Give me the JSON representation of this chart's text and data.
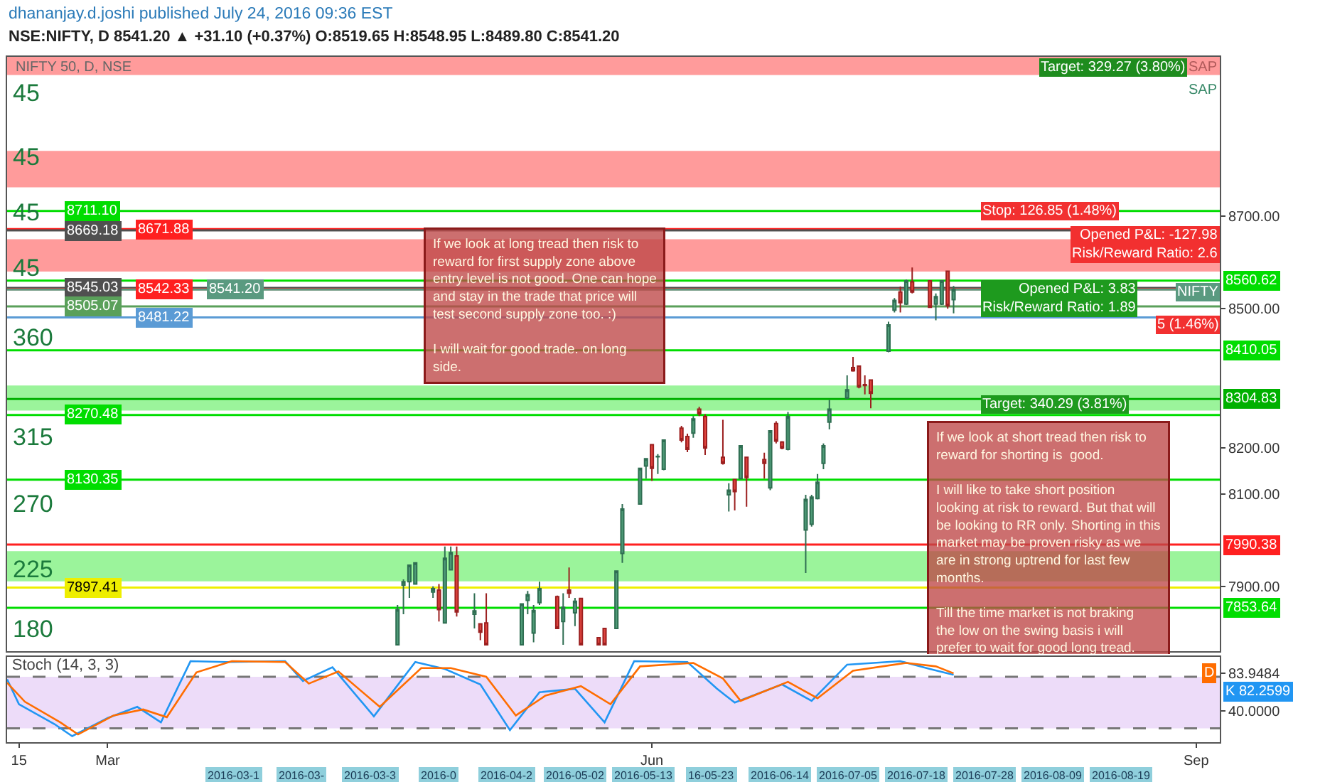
{
  "chart_data": [
    {
      "type": "candlestick",
      "title": "dhananjay.d.joshi published July 24, 2016 09:36 EST",
      "subtitle": "NSE:NIFTY, D 8541.20 ▲ +31.10 (+0.37%) O:8519.65 H:8548.95 L:8489.80 C:8541.20",
      "x": [
        "2016-04-19",
        "2016-04-20",
        "2016-04-21",
        "2016-04-22",
        "2016-04-25",
        "2016-04-26",
        "2016-04-27",
        "2016-04-28",
        "2016-04-29",
        "2016-05-02",
        "2016-05-03",
        "2016-05-04",
        "2016-05-10",
        "2016-05-11",
        "2016-05-12",
        "2016-05-13",
        "2016-05-16",
        "2016-05-17",
        "2016-05-18",
        "2016-05-19",
        "2016-05-20",
        "2016-05-23",
        "2016-05-24",
        "2016-05-26",
        "2016-05-27",
        "2016-05-30",
        "2016-05-31",
        "2016-06-01",
        "2016-06-02",
        "2016-06-03",
        "2016-06-06",
        "2016-06-07",
        "2016-06-08",
        "2016-06-09",
        "2016-06-10",
        "2016-06-13",
        "2016-06-14",
        "2016-06-15",
        "2016-06-16",
        "2016-06-17",
        "2016-06-20",
        "2016-06-21",
        "2016-06-22",
        "2016-06-23",
        "2016-06-24",
        "2016-06-27",
        "2016-06-28",
        "2016-06-29",
        "2016-06-30",
        "2016-07-01",
        "2016-07-04",
        "2016-07-05",
        "2016-07-06",
        "2016-07-07",
        "2016-07-08",
        "2016-07-11",
        "2016-07-12",
        "2016-07-13",
        "2016-07-14",
        "2016-07-15",
        "2016-07-18",
        "2016-07-19",
        "2016-07-20",
        "2016-07-21",
        "2016-07-22"
      ],
      "ohlc": [
        [
          7774,
          7860,
          7774,
          7850
        ],
        [
          7903,
          7915,
          7840,
          7910
        ],
        [
          7910,
          7946,
          7875,
          7946
        ],
        [
          7905,
          7951,
          7905,
          7951
        ],
        [
          7888,
          7900,
          7875,
          7895
        ],
        [
          7892,
          7905,
          7824,
          7850
        ],
        [
          7821,
          7986,
          7821,
          7961
        ],
        [
          7936,
          7986,
          7936,
          7973
        ],
        [
          7966,
          7986,
          7835,
          7845
        ],
        [
          7840,
          7885,
          7809,
          7847
        ],
        [
          7819,
          7819,
          7784,
          7801
        ],
        [
          7821,
          7885,
          7774,
          7774
        ],
        [
          7774,
          7862,
          7774,
          7862
        ],
        [
          7870,
          7890,
          7840,
          7882
        ],
        [
          7799,
          7860,
          7779,
          7848
        ],
        [
          7865,
          7910,
          7860,
          7895
        ],
        [
          7878,
          7880,
          7809,
          7809
        ],
        [
          7824,
          7885,
          7774,
          7855
        ],
        [
          7892,
          7941,
          7875,
          7885
        ],
        [
          7843,
          7875,
          7814,
          7868
        ],
        [
          7874,
          7874,
          7774,
          7774
        ],
        [
          7789,
          7789,
          7774,
          7774
        ],
        [
          7809,
          7809,
          7774,
          7774
        ],
        [
          7809,
          7933,
          7809,
          7933
        ],
        [
          7971,
          8078,
          7951,
          8067
        ],
        [
          8078,
          8155,
          8078,
          8155
        ],
        [
          8160,
          8176,
          8133,
          8176
        ],
        [
          8206,
          8206,
          8128,
          8155
        ],
        [
          8180,
          8186,
          8143,
          8181
        ],
        [
          8153,
          8216,
          8151,
          8216
        ],
        [
          8242,
          8247,
          8211,
          8216
        ],
        [
          8224,
          8230,
          8190,
          8196
        ],
        [
          8231,
          8268,
          8221,
          8262
        ],
        [
          8283,
          8288,
          8268,
          8273
        ],
        [
          8267,
          8272,
          8184,
          8199
        ],
        [
          8179,
          8260,
          8163,
          8166
        ],
        [
          8098,
          8123,
          8062,
          8108
        ],
        [
          8131,
          8131,
          8064,
          8105
        ],
        [
          8133,
          8204,
          8133,
          8204
        ],
        [
          8179,
          8179,
          8072,
          8135
        ],
        [
          8174,
          8189,
          8133,
          8166
        ],
        [
          8113,
          8236,
          8108,
          8236
        ],
        [
          8252,
          8257,
          8209,
          8214
        ],
        [
          8212,
          8214,
          8196,
          8199
        ],
        [
          8196,
          8277,
          8194,
          8267
        ],
        [
          8022,
          8098,
          7929,
          8088
        ],
        [
          8034,
          8098,
          8029,
          8093
        ],
        [
          8090,
          8143,
          8088,
          8125
        ],
        [
          8166,
          8209,
          8153,
          8204
        ],
        [
          8255,
          8303,
          8239,
          8283
        ],
        [
          8307,
          8356,
          8305,
          8325
        ],
        [
          8373,
          8396,
          8364,
          8366
        ],
        [
          8376,
          8376,
          8328,
          8331
        ],
        [
          8336,
          8356,
          8315,
          8334
        ],
        [
          8346,
          8346,
          8285,
          8317
        ],
        [
          8408,
          8472,
          8406,
          8465
        ],
        [
          8497,
          8523,
          8492,
          8518
        ],
        [
          8536,
          8548,
          8492,
          8513
        ],
        [
          8510,
          8563,
          8508,
          8560
        ],
        [
          8558,
          8589,
          8533,
          8536
        ],
        [
          8560,
          8560,
          8503,
          8503
        ],
        [
          8510,
          8533,
          8475,
          8526
        ],
        [
          8510,
          8560,
          8508,
          8560
        ],
        [
          8581,
          8581,
          8500,
          8506
        ],
        [
          8519.65,
          8548.95,
          8489.8,
          8541.2
        ]
      ],
      "xlim": [
        "2016-02-13",
        "2016-09-05"
      ],
      "ylim": [
        7760,
        9044
      ],
      "yticks": [
        {
          "value": 8700,
          "label": "8700.00"
        },
        {
          "value": 8500,
          "label": "8500.00"
        },
        {
          "value": 8200,
          "label": "8200.00"
        },
        {
          "value": 8100,
          "label": "8100.00"
        },
        {
          "value": 7900,
          "label": "7900.00"
        }
      ],
      "tick_labels": "y",
      "bands": [
        {
          "axis": "y",
          "from": 9005,
          "to": 9044,
          "color": "#ff7070"
        },
        {
          "axis": "y",
          "from": 8762,
          "to": 8841,
          "color": "#ff7070"
        },
        {
          "axis": "y",
          "from": 8580,
          "to": 8650,
          "color": "#ff7070"
        },
        {
          "axis": "y",
          "from": 8280,
          "to": 8334,
          "color": "#70f070"
        },
        {
          "axis": "y",
          "from": 7911,
          "to": 7976,
          "color": "#70f070"
        }
      ],
      "ref_lines": [
        {
          "axis": "y",
          "value": 8711.1,
          "label": "8711.10",
          "color": "#00dd00"
        },
        {
          "axis": "y",
          "value": 8671.88,
          "label": "8671.88",
          "color": "#ff2020"
        },
        {
          "axis": "y",
          "value": 8669.18,
          "label": "8669.18",
          "color": "#505050"
        },
        {
          "axis": "y",
          "value": 8560.62,
          "label": "8560.62",
          "color": "#00dd00"
        },
        {
          "axis": "y",
          "value": 8545.03,
          "label": "8545.03",
          "color": "#505050"
        },
        {
          "axis": "y",
          "value": 8542.33,
          "label": "8542.33",
          "color": "#ff2020"
        },
        {
          "axis": "y",
          "value": 8541.2,
          "label": "8541.20",
          "color": "#5a9a80"
        },
        {
          "axis": "y",
          "value": 8505.07,
          "label": "8505.07",
          "color": "#5aa05a"
        },
        {
          "axis": "y",
          "value": 8481.22,
          "label": "8481.22",
          "color": "#5b9bd5"
        },
        {
          "axis": "y",
          "value": 8410.05,
          "label": "8410.05",
          "color": "#00dd00"
        },
        {
          "axis": "y",
          "value": 8304.83,
          "label": "8304.83",
          "color": "#00b000"
        },
        {
          "axis": "y",
          "value": 8270.48,
          "label": "8270.48",
          "color": "#00dd00"
        },
        {
          "axis": "y",
          "value": 8130.35,
          "label": "8130.35",
          "color": "#00dd00"
        },
        {
          "axis": "y",
          "value": 7990.38,
          "label": "7990.38",
          "color": "#ff2020"
        },
        {
          "axis": "y",
          "value": 7897.41,
          "label": "7897.41",
          "color": "#eeee00"
        },
        {
          "axis": "y",
          "value": 7853.64,
          "label": "7853.64",
          "color": "#00dd00"
        }
      ],
      "annotations": [
        "NIFTY 50, D, NSE",
        "45",
        "45",
        "45",
        "45",
        "360",
        "315",
        "270",
        "225",
        "180",
        "If we look at long tread then risk to\nreward for first supply zone above\nentry level is not good. One can hope\nand stay in the trade that price will\ntest second supply zone too. :)\n\nI will wait for good trade. on long\nside.",
        "If we look at short tread then risk to\nreward for shorting is  good.\n\nI will like to take short position\nlooking at risk to reward. But that will\nbe looking to RR only. Shorting in this\nmarket may be proven risky as we\nare in strong uptrend for last few\nmonths.\n\nTill the time market is not braking\nthe low on the swing basis i will\nprefer to wait for good long tread.",
        "Stop: 126.85 (1.48%)",
        "Opened P&L: -127.98\nRisk/Reward Ratio: 2.6",
        "Target: 329.27 (3.80%)",
        "Opened P&L: 3.83\nRisk/Reward Ratio: 1.89",
        "5 (1.46%)",
        "Target: 340.29 (3.81%)",
        "SAP",
        "SAP",
        "NIFTY"
      ]
    },
    {
      "type": "line",
      "title": "Stoch (14, 3, 3)",
      "series": [
        {
          "name": "K",
          "color": "#2196f3",
          "x": [
            "2016-02-13",
            "2016-02-15",
            "2016-02-21",
            "2016-02-24",
            "2016-03-01",
            "2016-03-06",
            "2016-03-10",
            "2016-03-15",
            "2016-03-21",
            "2016-03-31",
            "2016-04-03",
            "2016-04-08",
            "2016-04-15",
            "2016-04-22",
            "2016-04-27",
            "2016-05-03",
            "2016-05-08",
            "2016-05-13",
            "2016-05-19",
            "2016-05-24",
            "2016-05-29",
            "2016-06-07",
            "2016-06-12",
            "2016-06-15",
            "2016-06-23",
            "2016-06-28",
            "2016-07-04",
            "2016-07-13",
            "2016-07-18",
            "2016-07-22"
          ],
          "values": [
            77,
            48,
            25,
            11,
            32,
            45,
            27,
            98,
            97,
            98,
            75,
            91,
            34,
            97,
            89,
            71,
            18,
            62,
            66,
            27,
            98,
            97,
            66,
            50,
            71,
            52,
            94,
            98,
            89,
            82.2599
          ],
          "value_labels": [
            null,
            null,
            null,
            null,
            null,
            null,
            null,
            null,
            null,
            null,
            null,
            null,
            null,
            null,
            null,
            null,
            null,
            null,
            null,
            null,
            null,
            null,
            null,
            null,
            null,
            null,
            null,
            null,
            null,
            "82.2599"
          ]
        },
        {
          "name": "D",
          "color": "#ff6d00",
          "x": [
            "2016-02-13",
            "2016-02-16",
            "2016-02-22",
            "2016-02-25",
            "2016-03-02",
            "2016-03-07",
            "2016-03-11",
            "2016-03-16",
            "2016-03-22",
            "2016-03-31",
            "2016-04-04",
            "2016-04-09",
            "2016-04-16",
            "2016-04-23",
            "2016-04-28",
            "2016-05-04",
            "2016-05-09",
            "2016-05-14",
            "2016-05-20",
            "2016-05-25",
            "2016-05-30",
            "2016-06-08",
            "2016-06-13",
            "2016-06-16",
            "2016-06-24",
            "2016-06-29",
            "2016-07-05",
            "2016-07-14",
            "2016-07-19",
            "2016-07-22"
          ],
          "values": [
            73,
            51,
            27,
            13,
            35,
            42,
            33,
            85,
            98,
            97,
            72,
            86,
            45,
            90,
            90,
            80,
            35,
            58,
            69,
            48,
            92,
            96,
            78,
            52,
            74,
            55,
            87,
            96,
            92,
            83.9484
          ]
        }
      ],
      "xlim": [
        "2016-02-13",
        "2016-09-05"
      ],
      "xticks": [
        {
          "value": "2016-02-15",
          "label": "15"
        },
        {
          "value": "2016-03-01",
          "label": "Mar"
        },
        {
          "value": "2016-06-01",
          "label": "Jun"
        },
        {
          "value": "2016-09-01",
          "label": "Sep"
        }
      ],
      "ylim": [
        4,
        103
      ],
      "yticks": [
        {
          "value": 40,
          "label": "40.0000"
        },
        {
          "value": 83.9484,
          "label": "83.9484"
        }
      ],
      "bands": [
        {
          "axis": "y",
          "from": 20,
          "to": 80,
          "color": "#e6cdf7"
        }
      ],
      "ref_lines": [
        {
          "axis": "y",
          "value": 80,
          "color": "#777777",
          "line_style": "dashed"
        },
        {
          "axis": "y",
          "value": 20,
          "color": "#777777",
          "line_style": "dashed"
        }
      ],
      "annotations": [
        "2016-03-1",
        "2016-03-",
        "2016-03-3",
        "2016-0",
        "2016-04-2",
        "2016-05-02",
        "2016-05-13",
        "16-05-23",
        "2016-06-14",
        "2016-07-05",
        "2016-07-18",
        "2016-07-28",
        "2016-08-09",
        "2016-08-19"
      ]
    }
  ]
}
